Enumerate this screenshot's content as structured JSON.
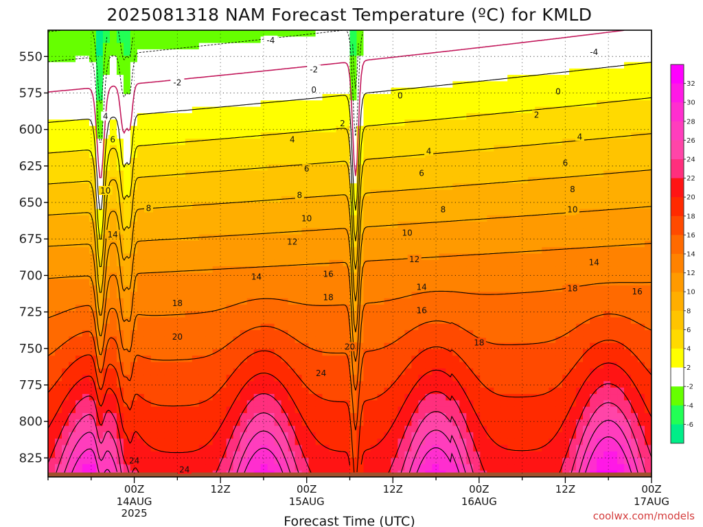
{
  "chart_data": {
    "type": "heatmap",
    "title": "2025081318 NAM Forecast Temperature (ºC) for KMLD",
    "xlabel": "Forecast Time (UTC)",
    "ylabel": "",
    "credit": "coolwx.com/models",
    "y_axis": {
      "ticks": [
        "550",
        "575",
        "600",
        "625",
        "650",
        "675",
        "700",
        "725",
        "750",
        "775",
        "800",
        "825"
      ],
      "values": [
        550,
        575,
        600,
        625,
        650,
        675,
        700,
        725,
        750,
        775,
        800,
        825
      ],
      "range": [
        532,
        838
      ]
    },
    "x_axis": {
      "range_hours": [
        -6,
        78
      ],
      "ticks": [
        {
          "hour": 6,
          "time": "00Z",
          "date": "14AUG",
          "year": "2025"
        },
        {
          "hour": 18,
          "time": "12Z",
          "date": "",
          "year": ""
        },
        {
          "hour": 30,
          "time": "00Z",
          "date": "15AUG",
          "year": ""
        },
        {
          "hour": 42,
          "time": "12Z",
          "date": "",
          "year": ""
        },
        {
          "hour": 54,
          "time": "00Z",
          "date": "16AUG",
          "year": ""
        },
        {
          "hour": 66,
          "time": "12Z",
          "date": "",
          "year": ""
        },
        {
          "hour": 78,
          "time": "00Z",
          "date": "17AUG",
          "year": ""
        }
      ]
    },
    "colorbar": {
      "ticks": [
        "32",
        "30",
        "28",
        "26",
        "24",
        "22",
        "20",
        "18",
        "16",
        "14",
        "12",
        "10",
        "8",
        "6",
        "4",
        "2",
        "-2",
        "-4",
        "-6"
      ],
      "bands": [
        {
          "min": 32,
          "max": 34,
          "color": "#ff00ff"
        },
        {
          "min": 30,
          "max": 32,
          "color": "#ff19e6"
        },
        {
          "min": 28,
          "max": 30,
          "color": "#ff2ecf"
        },
        {
          "min": 26,
          "max": 28,
          "color": "#ff3dbd"
        },
        {
          "min": 24,
          "max": 26,
          "color": "#ff45a8"
        },
        {
          "min": 22,
          "max": 24,
          "color": "#ff2f7d"
        },
        {
          "min": 20,
          "max": 22,
          "color": "#ff1414"
        },
        {
          "min": 18,
          "max": 20,
          "color": "#ff2a00"
        },
        {
          "min": 16,
          "max": 18,
          "color": "#ff4a00"
        },
        {
          "min": 14,
          "max": 16,
          "color": "#ff6a00"
        },
        {
          "min": 12,
          "max": 14,
          "color": "#ff8200"
        },
        {
          "min": 10,
          "max": 12,
          "color": "#ff9a00"
        },
        {
          "min": 8,
          "max": 10,
          "color": "#ffae00"
        },
        {
          "min": 6,
          "max": 8,
          "color": "#ffc400"
        },
        {
          "min": 4,
          "max": 6,
          "color": "#ffda00"
        },
        {
          "min": 2,
          "max": 4,
          "color": "#ffff00"
        },
        {
          "min": -2,
          "max": 2,
          "color": "#ffffff"
        },
        {
          "min": -4,
          "max": -2,
          "color": "#66ff00"
        },
        {
          "min": -6,
          "max": -4,
          "color": "#22ff55"
        },
        {
          "min": -8,
          "max": -6,
          "color": "#00ee88"
        }
      ]
    },
    "ground_color": "#a0522d",
    "zero_isotherm_color": "#c2185b",
    "grid": true,
    "contour_labels": [
      {
        "v": "-4",
        "h": 25,
        "p": 539
      },
      {
        "v": "-4",
        "h": 70,
        "p": 547
      },
      {
        "v": "-2",
        "h": 12,
        "p": 568
      },
      {
        "v": "-2",
        "h": 31,
        "p": 559
      },
      {
        "v": "0",
        "h": 31,
        "p": 573
      },
      {
        "v": "0",
        "h": 43,
        "p": 577
      },
      {
        "v": "0",
        "h": 65,
        "p": 574
      },
      {
        "v": "2",
        "h": 35,
        "p": 596
      },
      {
        "v": "2",
        "h": 62,
        "p": 590
      },
      {
        "v": "4",
        "h": 2,
        "p": 591
      },
      {
        "v": "4",
        "h": 28,
        "p": 607
      },
      {
        "v": "4",
        "h": 47,
        "p": 615
      },
      {
        "v": "4",
        "h": 68,
        "p": 605
      },
      {
        "v": "6",
        "h": 3,
        "p": 607
      },
      {
        "v": "6",
        "h": 30,
        "p": 627
      },
      {
        "v": "6",
        "h": 46,
        "p": 630
      },
      {
        "v": "6",
        "h": 66,
        "p": 623
      },
      {
        "v": "8",
        "h": 8,
        "p": 654
      },
      {
        "v": "8",
        "h": 29,
        "p": 645
      },
      {
        "v": "8",
        "h": 49,
        "p": 655
      },
      {
        "v": "8",
        "h": 67,
        "p": 641
      },
      {
        "v": "10",
        "h": 2,
        "p": 642
      },
      {
        "v": "10",
        "h": 30,
        "p": 661
      },
      {
        "v": "10",
        "h": 44,
        "p": 671
      },
      {
        "v": "10",
        "h": 67,
        "p": 655
      },
      {
        "v": "12",
        "h": 28,
        "p": 677
      },
      {
        "v": "12",
        "h": 45,
        "p": 689
      },
      {
        "v": "14",
        "h": 3,
        "p": 672
      },
      {
        "v": "14",
        "h": 23,
        "p": 701
      },
      {
        "v": "14",
        "h": 46,
        "p": 708
      },
      {
        "v": "14",
        "h": 70,
        "p": 691
      },
      {
        "v": "16",
        "h": 33,
        "p": 699
      },
      {
        "v": "16",
        "h": 46,
        "p": 724
      },
      {
        "v": "16",
        "h": 76,
        "p": 711
      },
      {
        "v": "18",
        "h": 12,
        "p": 719
      },
      {
        "v": "18",
        "h": 33,
        "p": 715
      },
      {
        "v": "18",
        "h": 54,
        "p": 746
      },
      {
        "v": "18",
        "h": 67,
        "p": 709
      },
      {
        "v": "20",
        "h": 12,
        "p": 742
      },
      {
        "v": "20",
        "h": 36,
        "p": 749
      },
      {
        "v": "24",
        "h": 32,
        "p": 767
      },
      {
        "v": "24",
        "h": 6,
        "p": 827
      },
      {
        "v": "24",
        "h": 13,
        "p": 833
      }
    ]
  }
}
